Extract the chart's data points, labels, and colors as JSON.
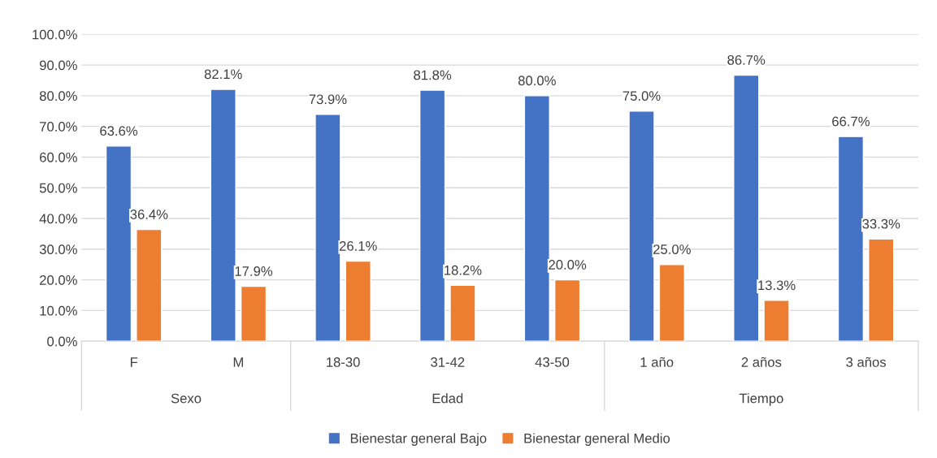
{
  "chart_data": {
    "type": "bar",
    "categories": [
      "F",
      "M",
      "18-30",
      "31-42",
      "43-50",
      "1 año",
      "2 años",
      "3 años"
    ],
    "series": [
      {
        "name": "Bienestar general Bajo",
        "color": "#4472c4",
        "values": [
          63.6,
          82.1,
          73.9,
          81.8,
          80.0,
          75.0,
          86.7,
          66.7
        ],
        "value_labels": [
          "63.6%",
          "82.1%",
          "73.9%",
          "81.8%",
          "80.0%",
          "75.0%",
          "86.7%",
          "66.7%"
        ]
      },
      {
        "name": "Bienestar general Medio",
        "color": "#ed7d31",
        "values": [
          36.4,
          17.9,
          26.1,
          18.2,
          20.0,
          25.0,
          13.3,
          33.3
        ],
        "value_labels": [
          "36.4%",
          "17.9%",
          "26.1%",
          "18.2%",
          "20.0%",
          "25.0%",
          "13.3%",
          "33.3%"
        ]
      }
    ],
    "annotations": [
      "Sexo",
      "Edad",
      "Tiempo"
    ],
    "ylim": [
      0,
      100
    ],
    "yticks": [
      {
        "value": 0,
        "label": "0.0%"
      },
      {
        "value": 10,
        "label": "10.0%"
      },
      {
        "value": 20,
        "label": "20.0%"
      },
      {
        "value": 30,
        "label": "30.0%"
      },
      {
        "value": 40,
        "label": "40.0%"
      },
      {
        "value": 50,
        "label": "50.0%"
      },
      {
        "value": 60,
        "label": "60.0%"
      },
      {
        "value": 70,
        "label": "70.0%"
      },
      {
        "value": 80,
        "label": "80.0%"
      },
      {
        "value": 90,
        "label": "90.0%"
      },
      {
        "value": 100,
        "label": "100.0%"
      }
    ],
    "grid": "y",
    "legend": "bottom"
  }
}
